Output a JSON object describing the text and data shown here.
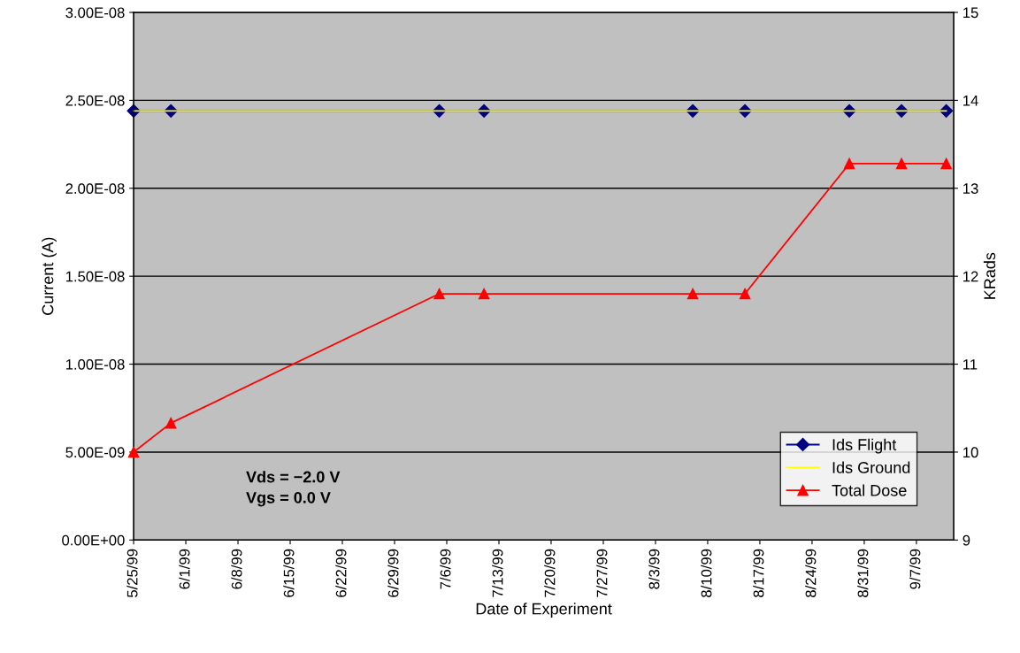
{
  "chart_data": {
    "type": "line",
    "xlabel": "Date of Experiment",
    "ylabel": "Current (A)",
    "y2label": "KRads",
    "x": [
      "1999-05-25",
      "1999-05-30",
      "1999-07-05",
      "1999-07-11",
      "1999-08-08",
      "1999-08-15",
      "1999-08-29",
      "1999-09-05",
      "1999-09-11"
    ],
    "series": [
      {
        "name": "Ids Flight",
        "color": "#000080",
        "marker": "diamond",
        "values": [
          2.44e-08,
          2.44e-08,
          2.44e-08,
          2.44e-08,
          2.44e-08,
          2.44e-08,
          2.44e-08,
          2.44e-08,
          2.44e-08
        ]
      },
      {
        "name": "Ids Ground",
        "color": "#ffff00",
        "marker": "none",
        "values": [
          2.44e-08,
          2.44e-08,
          2.44e-08,
          2.44e-08,
          2.44e-08,
          2.44e-08,
          2.44e-08,
          2.44e-08,
          2.44e-08
        ]
      },
      {
        "name": "Total Dose",
        "color": "#ff0000",
        "marker": "triangle",
        "axis": "y2",
        "values": [
          10.0,
          10.33,
          11.8,
          11.8,
          11.8,
          11.8,
          13.28,
          13.28,
          13.28
        ]
      }
    ],
    "xlim": [
      "1999-05-25",
      "1999-09-12"
    ],
    "xticks": [
      {
        "value": "1999-05-25",
        "label": "5/25/99"
      },
      {
        "value": "1999-06-01",
        "label": "6/1/99"
      },
      {
        "value": "1999-06-08",
        "label": "6/8/99"
      },
      {
        "value": "1999-06-15",
        "label": "6/15/99"
      },
      {
        "value": "1999-06-22",
        "label": "6/22/99"
      },
      {
        "value": "1999-06-29",
        "label": "6/29/99"
      },
      {
        "value": "1999-07-06",
        "label": "7/6/99"
      },
      {
        "value": "1999-07-13",
        "label": "7/13/99"
      },
      {
        "value": "1999-07-20",
        "label": "7/20/99"
      },
      {
        "value": "1999-07-27",
        "label": "7/27/99"
      },
      {
        "value": "1999-08-03",
        "label": "8/3/99"
      },
      {
        "value": "1999-08-10",
        "label": "8/10/99"
      },
      {
        "value": "1999-08-17",
        "label": "8/17/99"
      },
      {
        "value": "1999-08-24",
        "label": "8/24/99"
      },
      {
        "value": "1999-08-31",
        "label": "8/31/99"
      },
      {
        "value": "1999-09-07",
        "label": "9/7/99"
      }
    ],
    "ylim": [
      0,
      3e-08
    ],
    "yticks": [
      {
        "value": 0,
        "label": "0.00E+00"
      },
      {
        "value": 5e-09,
        "label": "5.00E-09"
      },
      {
        "value": 1e-08,
        "label": "1.00E-08"
      },
      {
        "value": 1.5e-08,
        "label": "1.50E-08"
      },
      {
        "value": 2e-08,
        "label": "2.00E-08"
      },
      {
        "value": 2.5e-08,
        "label": "2.50E-08"
      },
      {
        "value": 3e-08,
        "label": "3.00E-08"
      }
    ],
    "y2lim": [
      9,
      15
    ],
    "y2ticks": [
      9,
      10,
      11,
      12,
      13,
      14,
      15
    ],
    "grid": "y",
    "legend": "bottom right",
    "annotations": [
      "Vds = −2.0 V\nVgs = 0.0 V"
    ]
  }
}
